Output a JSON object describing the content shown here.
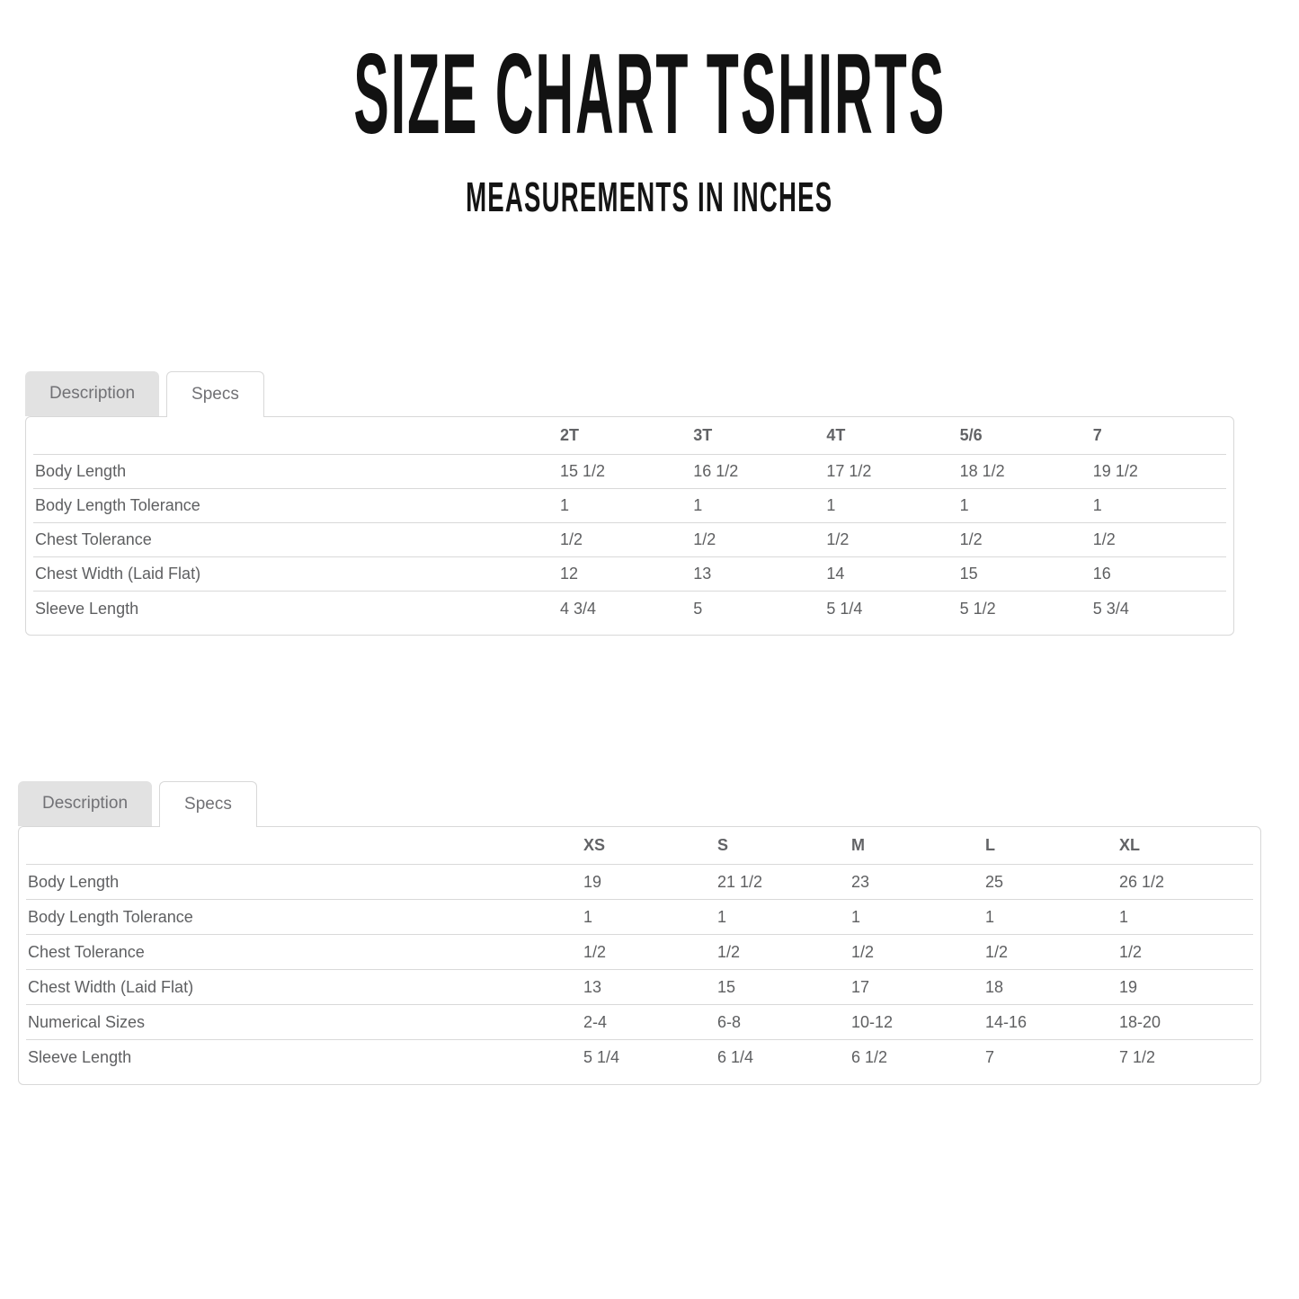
{
  "page": {
    "title": "SIZE CHART TSHIRTS",
    "subtitle": "MEASUREMENTS IN INCHES"
  },
  "colors": {
    "background": "#ffffff",
    "title_text": "#121212",
    "table_text": "#5e5f61",
    "tab_text": "#717175",
    "inactive_tab_bg": "#e2e2e2",
    "border": "#d8d8d8"
  },
  "tables": [
    {
      "tabs": [
        {
          "label": "Description",
          "active": false
        },
        {
          "label": "Specs",
          "active": true
        }
      ],
      "columns": [
        "2T",
        "3T",
        "4T",
        "5/6",
        "7"
      ],
      "rows": [
        {
          "label": "Body Length",
          "values": [
            "15 1/2",
            "16 1/2",
            "17 1/2",
            "18 1/2",
            "19 1/2"
          ]
        },
        {
          "label": "Body Length Tolerance",
          "values": [
            "1",
            "1",
            "1",
            "1",
            "1"
          ]
        },
        {
          "label": "Chest Tolerance",
          "values": [
            "1/2",
            "1/2",
            "1/2",
            "1/2",
            "1/2"
          ]
        },
        {
          "label": "Chest Width (Laid Flat)",
          "values": [
            "12",
            "13",
            "14",
            "15",
            "16"
          ]
        },
        {
          "label": "Sleeve Length",
          "values": [
            "4 3/4",
            "5",
            "5 1/4",
            "5 1/2",
            "5 3/4"
          ]
        }
      ]
    },
    {
      "tabs": [
        {
          "label": "Description",
          "active": false
        },
        {
          "label": "Specs",
          "active": true
        }
      ],
      "columns": [
        "XS",
        "S",
        "M",
        "L",
        "XL"
      ],
      "rows": [
        {
          "label": "Body Length",
          "values": [
            "19",
            "21 1/2",
            "23",
            "25",
            "26 1/2"
          ]
        },
        {
          "label": "Body Length Tolerance",
          "values": [
            "1",
            "1",
            "1",
            "1",
            "1"
          ]
        },
        {
          "label": "Chest Tolerance",
          "values": [
            "1/2",
            "1/2",
            "1/2",
            "1/2",
            "1/2"
          ]
        },
        {
          "label": "Chest Width (Laid Flat)",
          "values": [
            "13",
            "15",
            "17",
            "18",
            "19"
          ]
        },
        {
          "label": "Numerical Sizes",
          "values": [
            "2-4",
            "6-8",
            "10-12",
            "14-16",
            "18-20"
          ]
        },
        {
          "label": "Sleeve Length",
          "values": [
            "5 1/4",
            "6 1/4",
            "6 1/2",
            "7",
            "7 1/2"
          ]
        }
      ]
    }
  ]
}
